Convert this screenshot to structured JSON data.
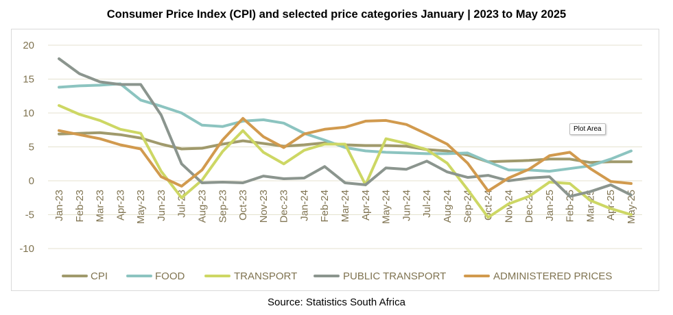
{
  "title": "Consumer Price Index (CPI) and selected price categories January | 2023 to May 2025",
  "source": "Source: Statistics South Africa",
  "tooltip": "Plot Area",
  "chart_data": {
    "type": "line",
    "title": "Consumer Price Index (CPI) and selected price categories January | 2023 to May 2025",
    "xlabel": "",
    "ylabel": "",
    "ylim": [
      -10,
      20
    ],
    "yticks": [
      -10,
      -5,
      0,
      5,
      10,
      15,
      20
    ],
    "grid": true,
    "legend_position": "bottom",
    "categories": [
      "Jan-23",
      "Feb-23",
      "Mar-23",
      "Apr-23",
      "May-23",
      "Jun-23",
      "Jul-23",
      "Aug-23",
      "Sep-23",
      "Oct-23",
      "Nov-23",
      "Dec-23",
      "Jan-24",
      "Feb-24",
      "Mar-24",
      "Apr-24",
      "May-24",
      "Jun-24",
      "Jul-24",
      "Aug-24",
      "Sep-24",
      "Oct-24",
      "Nov-24",
      "Dec-24",
      "Jan-25",
      "Feb-25",
      "Mar-25",
      "Apr-25",
      "May-25"
    ],
    "series": [
      {
        "name": "CPI",
        "color": "#a09a6c",
        "values": [
          6.9,
          7.0,
          7.1,
          6.8,
          6.3,
          5.4,
          4.7,
          4.8,
          5.4,
          5.9,
          5.5,
          5.1,
          5.3,
          5.6,
          5.3,
          5.2,
          5.2,
          5.1,
          4.6,
          4.4,
          3.8,
          2.8,
          2.9,
          3.0,
          3.2,
          3.2,
          2.7,
          2.8,
          2.8
        ]
      },
      {
        "name": "FOOD",
        "color": "#8cc4c0",
        "values": [
          13.8,
          14.0,
          14.1,
          14.3,
          11.9,
          11.0,
          10.0,
          8.2,
          8.0,
          8.8,
          9.0,
          8.5,
          7.0,
          6.0,
          4.9,
          4.4,
          4.2,
          4.1,
          4.0,
          4.0,
          4.1,
          2.8,
          1.6,
          1.6,
          1.4,
          1.8,
          2.2,
          3.2,
          4.4
        ]
      },
      {
        "name": "TRANSPORT",
        "color": "#cdd764",
        "values": [
          11.1,
          9.8,
          8.9,
          7.6,
          7.0,
          1.4,
          -2.5,
          0.1,
          4.3,
          7.4,
          4.2,
          2.5,
          4.5,
          5.4,
          5.4,
          -0.6,
          6.2,
          5.5,
          4.6,
          2.6,
          -1.3,
          -5.4,
          -3.4,
          -2.3,
          -0.2,
          -0.4,
          -2.9,
          -4.1,
          -5.0
        ]
      },
      {
        "name": "PUBLIC TRANSPORT",
        "color": "#8b958e",
        "values": [
          18.0,
          15.8,
          14.6,
          14.2,
          14.2,
          9.7,
          2.5,
          -0.3,
          -0.2,
          -0.3,
          0.7,
          0.3,
          0.4,
          2.1,
          -0.3,
          -0.6,
          1.9,
          1.7,
          2.9,
          1.3,
          0.5,
          0.8,
          0.0,
          0.4,
          0.6,
          -2.3,
          -1.6,
          -0.6,
          -2.1
        ]
      },
      {
        "name": "ADMINISTERED PRICES",
        "color": "#d19a4e",
        "values": [
          7.4,
          6.8,
          6.2,
          5.3,
          4.7,
          0.6,
          -0.8,
          1.6,
          6.0,
          9.2,
          6.5,
          4.9,
          6.9,
          7.6,
          7.9,
          8.8,
          8.9,
          8.3,
          6.9,
          5.4,
          2.6,
          -1.5,
          0.4,
          1.7,
          3.7,
          4.2,
          1.8,
          -0.1,
          -0.4
        ]
      }
    ]
  }
}
